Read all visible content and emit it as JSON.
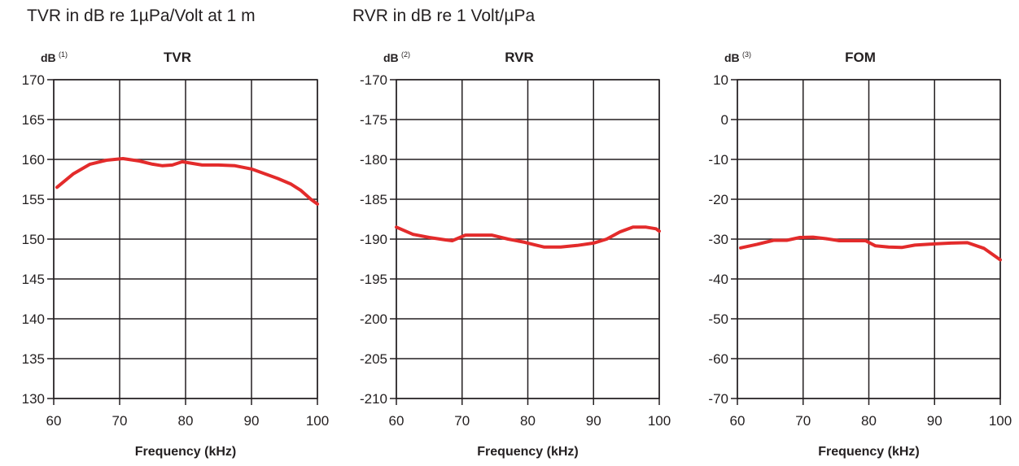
{
  "captions": {
    "tvr": "TVR in dB re 1µPa/Volt at 1 m",
    "rvr": "RVR in dB re 1 Volt/µPa"
  },
  "chart_data": [
    {
      "type": "line",
      "title": "TVR",
      "ylabel": "dB",
      "ylabel_note": "(1)",
      "xlabel": "Frequency (kHz)",
      "xlim": [
        60,
        100
      ],
      "ylim": [
        130,
        170
      ],
      "xticks": [
        "60",
        "70",
        "80",
        "90",
        "100"
      ],
      "yticks": [
        "170",
        "165",
        "160",
        "155",
        "150",
        "145",
        "140",
        "135",
        "130"
      ],
      "series_color": "#e32b2b",
      "x": [
        60.5,
        63,
        65.5,
        68,
        70.5,
        73,
        75,
        76.5,
        78,
        79.5,
        81,
        82.5,
        85,
        87.5,
        90,
        92,
        94,
        96,
        97.5,
        99,
        100
      ],
      "y": [
        156.5,
        158.2,
        159.4,
        159.9,
        160.1,
        159.8,
        159.4,
        159.2,
        159.3,
        159.7,
        159.5,
        159.3,
        159.3,
        159.2,
        158.8,
        158.2,
        157.6,
        156.9,
        156.1,
        155.0,
        154.4
      ]
    },
    {
      "type": "line",
      "title": "RVR",
      "ylabel": "dB",
      "ylabel_note": "(2)",
      "xlabel": "Frequency (kHz)",
      "xlim": [
        60,
        100
      ],
      "ylim": [
        -210,
        -170
      ],
      "xticks": [
        "60",
        "70",
        "80",
        "90",
        "100"
      ],
      "yticks": [
        "-170",
        "-175",
        "-180",
        "-185",
        "-190",
        "-195",
        "-200",
        "-205",
        "-210"
      ],
      "series_color": "#e32b2b",
      "x": [
        60,
        62.5,
        65,
        67.5,
        68.5,
        70.5,
        72.5,
        74.5,
        77,
        79.5,
        81,
        82.5,
        85,
        87.5,
        90,
        92,
        94,
        96,
        98,
        99.5,
        100
      ],
      "y": [
        -188.5,
        -189.4,
        -189.8,
        -190.1,
        -190.2,
        -189.5,
        -189.5,
        -189.5,
        -190.0,
        -190.4,
        -190.7,
        -191.0,
        -191.0,
        -190.8,
        -190.5,
        -190.0,
        -189.1,
        -188.5,
        -188.5,
        -188.7,
        -189.0
      ]
    },
    {
      "type": "line",
      "title": "FOM",
      "ylabel": "dB",
      "ylabel_note": "(3)",
      "xlabel": "Frequency (kHz)",
      "xlim": [
        60,
        100
      ],
      "ylim": [
        -70,
        10
      ],
      "xticks": [
        "60",
        "70",
        "80",
        "90",
        "100"
      ],
      "yticks": [
        "10",
        "0",
        "-10",
        "-20",
        "-30",
        "-40",
        "-50",
        "-60",
        "-70"
      ],
      "series_color": "#e32b2b",
      "x": [
        60.5,
        63,
        65.5,
        67.5,
        69.5,
        71.5,
        73.5,
        75.5,
        77.5,
        79.5,
        81,
        83,
        85,
        87,
        90,
        92.5,
        95,
        97.5,
        100
      ],
      "y": [
        -32.2,
        -31.3,
        -30.3,
        -30.3,
        -29.6,
        -29.5,
        -29.9,
        -30.4,
        -30.4,
        -30.4,
        -31.7,
        -32.0,
        -32.1,
        -31.5,
        -31.2,
        -31.0,
        -30.9,
        -32.3,
        -35.2
      ]
    }
  ]
}
